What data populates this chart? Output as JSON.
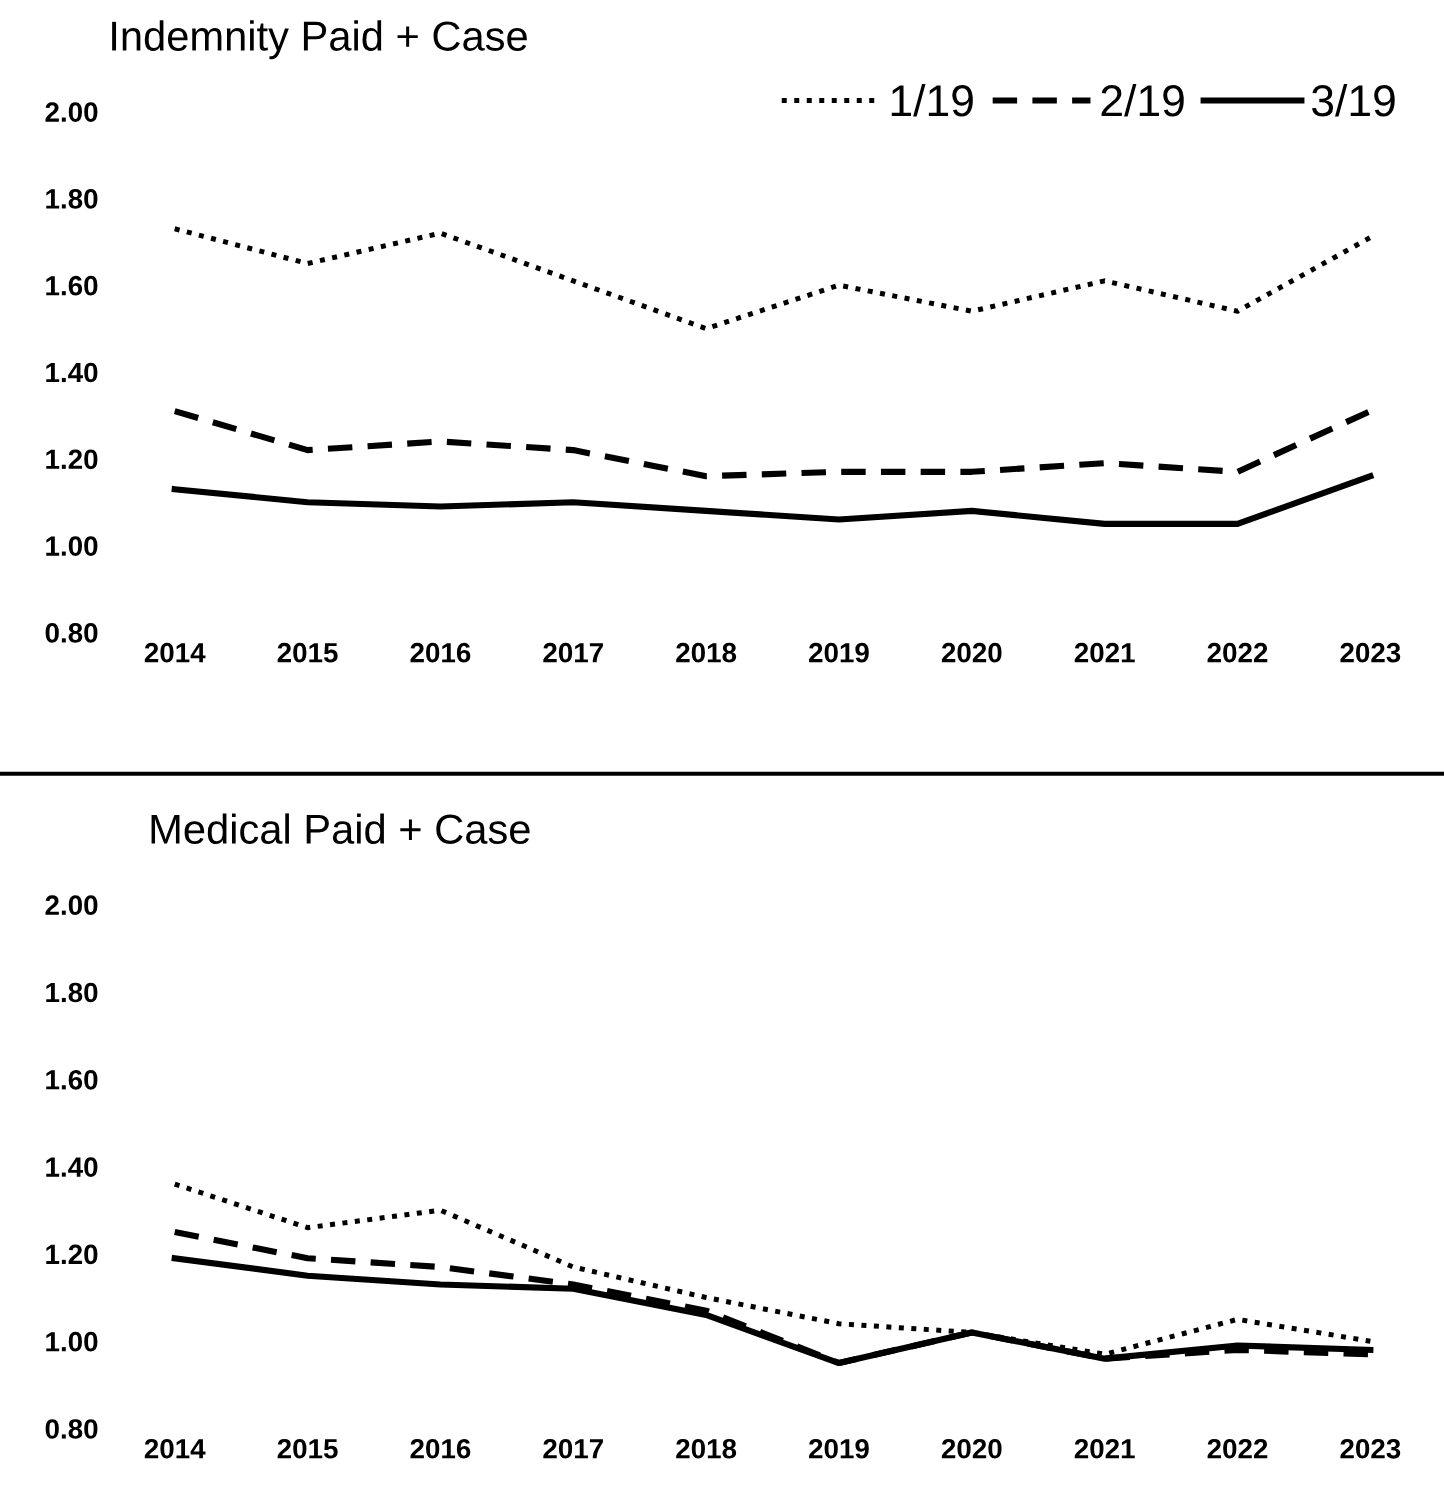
{
  "chart_data": [
    {
      "type": "line",
      "title": "Indemnity Paid + Case",
      "categories": [
        "2014",
        "2015",
        "2016",
        "2017",
        "2018",
        "2019",
        "2020",
        "2021",
        "2022",
        "2023"
      ],
      "series": [
        {
          "name": "1/19",
          "color": "#000000",
          "line_style": "dotted",
          "values": [
            1.73,
            1.65,
            1.72,
            1.61,
            1.5,
            1.6,
            1.54,
            1.61,
            1.54,
            1.71
          ]
        },
        {
          "name": "2/19",
          "color": "#000000",
          "line_style": "dashed",
          "values": [
            1.31,
            1.22,
            1.24,
            1.22,
            1.16,
            1.17,
            1.17,
            1.19,
            1.17,
            1.31
          ]
        },
        {
          "name": "3/19",
          "color": "#000000",
          "line_style": "solid",
          "values": [
            1.13,
            1.1,
            1.09,
            1.1,
            1.08,
            1.06,
            1.08,
            1.05,
            1.05,
            1.16
          ]
        }
      ],
      "ylim": [
        0.8,
        2.0
      ],
      "yticks": [
        {
          "value": 0.8,
          "label": "0.80"
        },
        {
          "value": 1.0,
          "label": "1.00"
        },
        {
          "value": 1.2,
          "label": "1.20"
        },
        {
          "value": 1.4,
          "label": "1.40"
        },
        {
          "value": 1.6,
          "label": "1.60"
        },
        {
          "value": 1.8,
          "label": "1.80"
        },
        {
          "value": 2.0,
          "label": "2.00"
        }
      ],
      "grid": false,
      "legend": "top right"
    },
    {
      "type": "line",
      "title": "Medical Paid + Case",
      "categories": [
        "2014",
        "2015",
        "2016",
        "2017",
        "2018",
        "2019",
        "2020",
        "2021",
        "2022",
        "2023"
      ],
      "series": [
        {
          "color": "#000000",
          "line_style": "dotted",
          "values": [
            1.36,
            1.26,
            1.3,
            1.17,
            1.1,
            1.04,
            1.02,
            0.97,
            1.05,
            1.0
          ]
        },
        {
          "color": "#000000",
          "line_style": "dashed",
          "values": [
            1.25,
            1.19,
            1.17,
            1.13,
            1.07,
            0.95,
            1.02,
            0.96,
            0.98,
            0.97
          ]
        },
        {
          "color": "#000000",
          "line_style": "solid",
          "values": [
            1.19,
            1.15,
            1.13,
            1.12,
            1.06,
            0.95,
            1.02,
            0.96,
            0.99,
            0.98
          ]
        }
      ],
      "ylim": [
        0.8,
        2.0
      ],
      "yticks": [
        {
          "value": 0.8,
          "label": "0.80"
        },
        {
          "value": 1.0,
          "label": "1.00"
        },
        {
          "value": 1.2,
          "label": "1.20"
        },
        {
          "value": 1.4,
          "label": "1.40"
        },
        {
          "value": 1.6,
          "label": "1.60"
        },
        {
          "value": 1.8,
          "label": "1.80"
        },
        {
          "value": 2.0,
          "label": "2.00"
        }
      ],
      "grid": false
    }
  ]
}
